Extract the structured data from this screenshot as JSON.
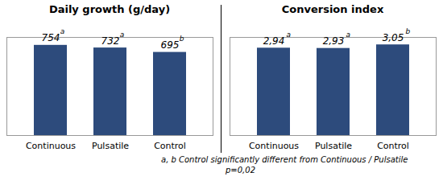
{
  "chart_data": [
    {
      "type": "bar",
      "title": "Daily growth (g/day)",
      "categories": [
        "Continuous",
        "Pulsatile",
        "Control"
      ],
      "values": [
        754,
        732,
        695
      ],
      "annotations": [
        "a",
        "a",
        "b"
      ],
      "color": "#2d4b7c",
      "ylim": [
        0,
        820
      ],
      "grid": false,
      "data_labels": true,
      "tick_labels": "x"
    },
    {
      "type": "bar",
      "title": "Conversion index",
      "categories": [
        "Continuous",
        "Pulsatile",
        "Control"
      ],
      "values": [
        2.94,
        2.93,
        3.05
      ],
      "value_labels": [
        "2,94",
        "2,93",
        "3,05"
      ],
      "annotations": [
        "a",
        "a",
        "b"
      ],
      "color": "#2d4b7c",
      "ylim": [
        0,
        3.3
      ],
      "grid": false,
      "data_labels": true,
      "tick_labels": "x"
    }
  ],
  "footnote": [
    "a, b Control significantly different from Continuous / Pulsatile",
    "p=0,02"
  ]
}
